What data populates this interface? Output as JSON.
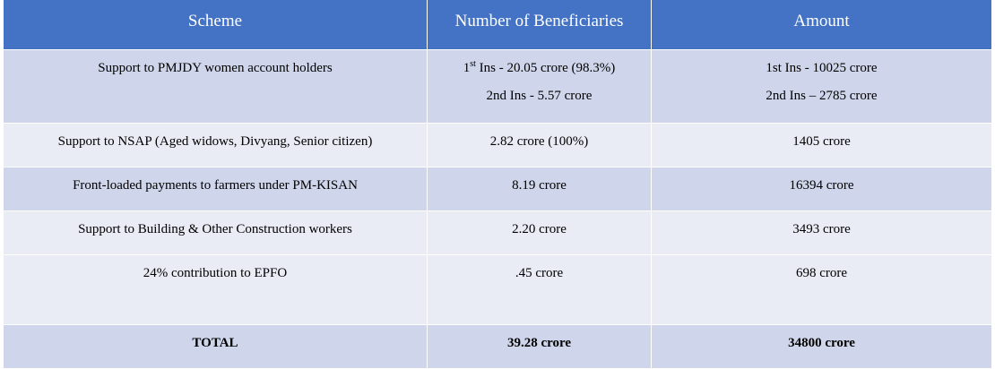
{
  "header": {
    "scheme": "Scheme",
    "beneficiaries": "Number of Beneficiaries",
    "amount": "Amount"
  },
  "rows": [
    {
      "scheme": "Support to PMJDY women account holders",
      "beneficiaries_line1_prefix": "1",
      "beneficiaries_line1_sup": "st",
      "beneficiaries_line1_rest": " Ins - 20.05 crore (98.3%)",
      "beneficiaries_line2": "2nd Ins - 5.57 crore",
      "amount_line1": "1st Ins - 10025 crore",
      "amount_line2": "2nd Ins – 2785 crore"
    },
    {
      "scheme": "Support to NSAP (Aged widows, Divyang, Senior citizen)",
      "beneficiaries": "2.82 crore (100%)",
      "amount": "1405 crore"
    },
    {
      "scheme": "Front-loaded payments to farmers under PM-KISAN",
      "beneficiaries": "8.19 crore",
      "amount": "16394 crore"
    },
    {
      "scheme": "Support to Building & Other Construction workers",
      "beneficiaries": "2.20 crore",
      "amount": "3493 crore"
    },
    {
      "scheme": "24% contribution to EPFO",
      "beneficiaries": ".45 crore",
      "amount": "698 crore"
    }
  ],
  "total": {
    "label": "TOTAL",
    "beneficiaries": "39.28 crore",
    "amount": "34800 crore"
  },
  "colors": {
    "header_bg": "#4472c4",
    "row_dark": "#cfd5ea",
    "row_light": "#e9ebf5"
  }
}
